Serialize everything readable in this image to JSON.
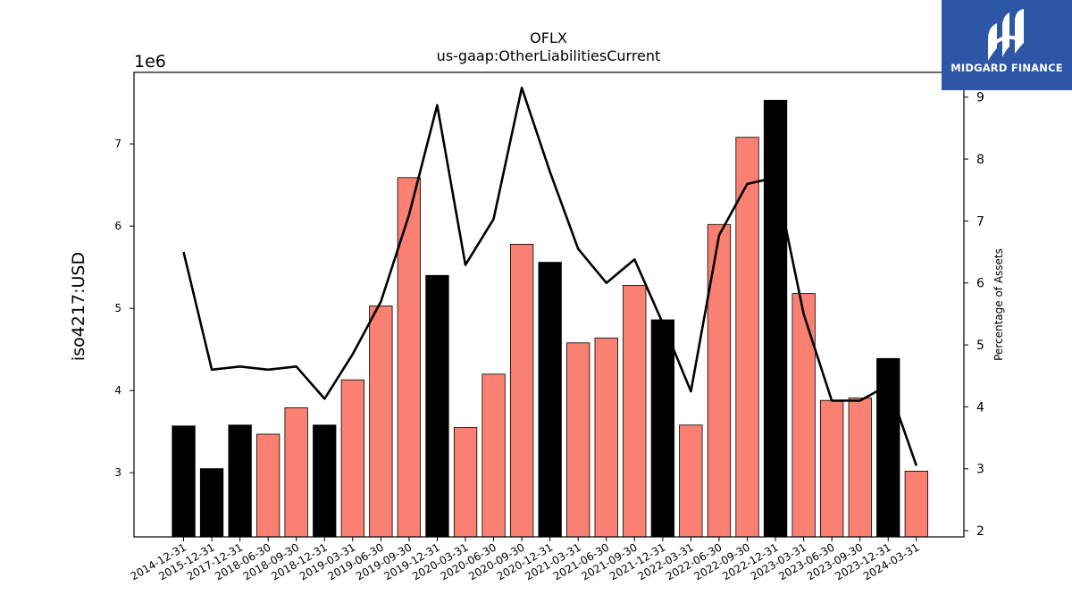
{
  "chart_data": {
    "type": "bar",
    "title": "OFLX",
    "subtitle": "us-gaap:OtherLiabilitiesCurrent",
    "ylabel": "iso4217:USD",
    "y_offset_text": "1e6",
    "y2label": "Percentage of Assets",
    "ylim": [
      2220000,
      7870000
    ],
    "y2lim": [
      1.9,
      9.4
    ],
    "yticks": [
      3,
      4,
      5,
      6,
      7
    ],
    "y2ticks": [
      2,
      3,
      4,
      5,
      6,
      7,
      8,
      9
    ],
    "categories": [
      "2014-12-31",
      "2015-12-31",
      "2017-12-31",
      "2018-06-30",
      "2018-09-30",
      "2018-12-31",
      "2019-03-31",
      "2019-06-30",
      "2019-09-30",
      "2019-12-31",
      "2020-03-31",
      "2020-06-30",
      "2020-09-30",
      "2020-12-31",
      "2021-03-31",
      "2021-06-30",
      "2021-09-30",
      "2021-12-31",
      "2022-03-31",
      "2022-06-30",
      "2022-09-30",
      "2022-12-31",
      "2023-03-31",
      "2023-06-30",
      "2023-09-30",
      "2023-12-31",
      "2024-03-31"
    ],
    "series": [
      {
        "type": "bar",
        "values": [
          3570000,
          3050000,
          3580000,
          3470000,
          3790000,
          3580000,
          4130000,
          5030000,
          6590000,
          5400000,
          3550000,
          4200000,
          5780000,
          5560000,
          4580000,
          4640000,
          5280000,
          4860000,
          3580000,
          6020000,
          7080000,
          7530000,
          5180000,
          3880000,
          3910000,
          4390000,
          3020000
        ],
        "colors": [
          "#000000",
          "#000000",
          "#000000",
          "#fa8072",
          "#fa8072",
          "#000000",
          "#fa8072",
          "#fa8072",
          "#fa8072",
          "#000000",
          "#fa8072",
          "#fa8072",
          "#fa8072",
          "#000000",
          "#fa8072",
          "#fa8072",
          "#fa8072",
          "#000000",
          "#fa8072",
          "#fa8072",
          "#fa8072",
          "#000000",
          "#fa8072",
          "#fa8072",
          "#fa8072",
          "#000000",
          "#fa8072"
        ]
      },
      {
        "type": "line",
        "axis": "right",
        "color": "#000000",
        "values": [
          6.5,
          4.6,
          4.65,
          4.6,
          4.65,
          4.13,
          4.85,
          5.7,
          7.1,
          8.87,
          6.29,
          7.03,
          9.15,
          7.79,
          6.55,
          6.0,
          6.38,
          5.35,
          4.25,
          6.77,
          7.6,
          7.7,
          5.5,
          4.1,
          4.1,
          4.35,
          3.05
        ]
      }
    ]
  },
  "logo": {
    "text": "MIDGARD FINANCE",
    "color": "#2d56a6"
  }
}
